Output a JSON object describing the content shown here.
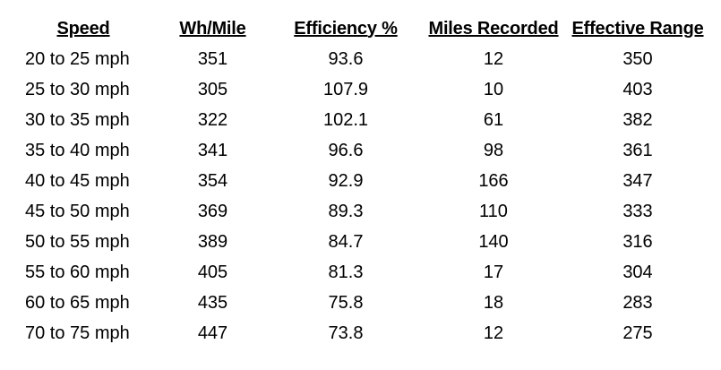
{
  "table": {
    "headers": {
      "speed": "Speed",
      "wh_per_mile": "Wh/Mile",
      "efficiency": "Efficiency %",
      "miles_recorded": "Miles Recorded",
      "effective_range": "Effective Range"
    },
    "rows": [
      {
        "speed": "20 to 25 mph",
        "wh_per_mile": "351",
        "efficiency": "93.6",
        "miles_recorded": "12",
        "effective_range": "350"
      },
      {
        "speed": "25 to 30 mph",
        "wh_per_mile": "305",
        "efficiency": "107.9",
        "miles_recorded": "10",
        "effective_range": "403"
      },
      {
        "speed": "30 to 35 mph",
        "wh_per_mile": "322",
        "efficiency": "102.1",
        "miles_recorded": "61",
        "effective_range": "382"
      },
      {
        "speed": "35 to 40 mph",
        "wh_per_mile": "341",
        "efficiency": "96.6",
        "miles_recorded": "98",
        "effective_range": "361"
      },
      {
        "speed": "40 to 45 mph",
        "wh_per_mile": "354",
        "efficiency": "92.9",
        "miles_recorded": "166",
        "effective_range": "347"
      },
      {
        "speed": "45 to 50 mph",
        "wh_per_mile": "369",
        "efficiency": "89.3",
        "miles_recorded": "110",
        "effective_range": "333"
      },
      {
        "speed": "50 to 55 mph",
        "wh_per_mile": "389",
        "efficiency": "84.7",
        "miles_recorded": "140",
        "effective_range": "316"
      },
      {
        "speed": "55 to 60 mph",
        "wh_per_mile": "405",
        "efficiency": "81.3",
        "miles_recorded": "17",
        "effective_range": "304"
      },
      {
        "speed": "60 to 65 mph",
        "wh_per_mile": "435",
        "efficiency": "75.8",
        "miles_recorded": "18",
        "effective_range": "283"
      },
      {
        "speed": "70 to 75 mph",
        "wh_per_mile": "447",
        "efficiency": "73.8",
        "miles_recorded": "12",
        "effective_range": "275"
      }
    ]
  }
}
